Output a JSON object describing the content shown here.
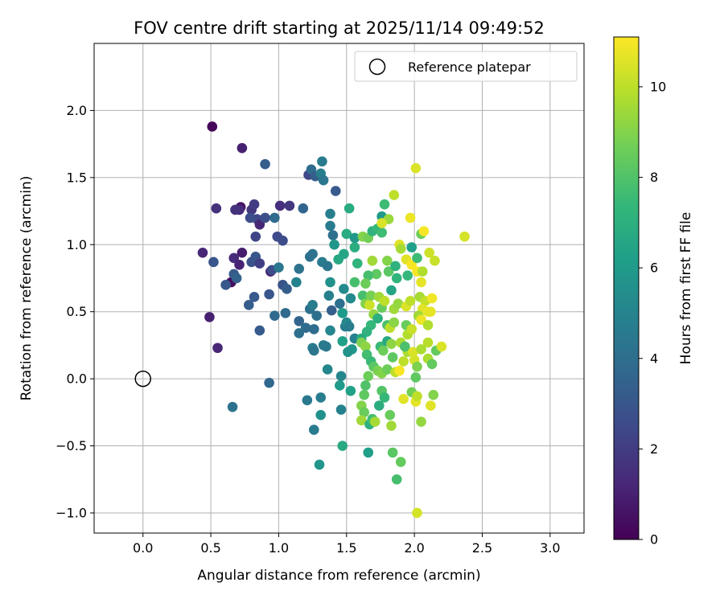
{
  "chart_data": {
    "type": "scatter",
    "title": "FOV centre drift starting at 2025/11/14 09:49:52",
    "xlabel": "Angular distance from reference (arcmin)",
    "ylabel": "Rotation from reference (arcmin)",
    "xlim": [
      -0.36,
      3.25
    ],
    "ylim": [
      -1.15,
      2.5
    ],
    "x_ticks": [
      0.0,
      0.5,
      1.0,
      1.5,
      2.0,
      2.5,
      3.0
    ],
    "x_tick_labels": [
      "0.0",
      "0.5",
      "1.0",
      "1.5",
      "2.0",
      "2.5",
      "3.0"
    ],
    "y_ticks": [
      -1.0,
      -0.5,
      0.0,
      0.5,
      1.0,
      1.5,
      2.0
    ],
    "y_tick_labels": [
      "−1.0",
      "−0.5",
      "0.0",
      "0.5",
      "1.0",
      "1.5",
      "2.0"
    ],
    "grid": true,
    "legend": {
      "position": "top-right",
      "entries": [
        "Reference platepar"
      ]
    },
    "reference_point": {
      "x": 0.0,
      "y": 0.0,
      "label": "Reference platepar"
    },
    "colorbar": {
      "label": "Hours from first FF file",
      "range": [
        0,
        11.1
      ],
      "ticks": [
        0,
        2,
        4,
        6,
        8,
        10
      ],
      "tick_labels": [
        "0",
        "2",
        "4",
        "6",
        "8",
        "10"
      ],
      "colormap": [
        "#440154",
        "#482878",
        "#3e4989",
        "#31688e",
        "#26828e",
        "#1f9e89",
        "#35b779",
        "#6ece58",
        "#b5de2b",
        "#fde725"
      ]
    },
    "points_columns": [
      "x",
      "y",
      "hours"
    ],
    "points": [
      [
        0.51,
        1.88,
        0.2
      ],
      [
        0.73,
        1.72,
        1.0
      ],
      [
        0.54,
        1.27,
        1.6
      ],
      [
        0.72,
        1.28,
        0.6
      ],
      [
        0.71,
        1.26,
        1.4
      ],
      [
        0.44,
        0.94,
        1.2
      ],
      [
        0.49,
        0.46,
        1.0
      ],
      [
        0.55,
        0.23,
        1.2
      ],
      [
        0.65,
        0.72,
        0.4
      ],
      [
        0.67,
        0.9,
        1.4
      ],
      [
        0.71,
        0.85,
        1.1
      ],
      [
        0.73,
        0.94,
        0.9
      ],
      [
        0.68,
        1.26,
        1.6
      ],
      [
        0.8,
        1.26,
        1.8
      ],
      [
        0.82,
        1.3,
        2.0
      ],
      [
        0.84,
        1.19,
        2.4
      ],
      [
        0.86,
        1.15,
        1.2
      ],
      [
        0.79,
        1.2,
        2.6
      ],
      [
        0.83,
        1.06,
        2.3
      ],
      [
        0.8,
        0.87,
        2.8
      ],
      [
        0.83,
        0.91,
        3.0
      ],
      [
        0.86,
        0.86,
        2.1
      ],
      [
        0.52,
        0.87,
        3.0
      ],
      [
        0.61,
        0.7,
        3.1
      ],
      [
        0.67,
        0.78,
        3.2
      ],
      [
        0.69,
        0.75,
        3.5
      ],
      [
        0.78,
        0.55,
        3.3
      ],
      [
        0.82,
        0.61,
        3.1
      ],
      [
        0.86,
        0.36,
        3.2
      ],
      [
        0.93,
        0.63,
        3.0
      ],
      [
        0.94,
        0.8,
        1.1
      ],
      [
        0.95,
        0.81,
        2.6
      ],
      [
        0.9,
        1.6,
        3.3
      ],
      [
        0.9,
        1.2,
        2.7
      ],
      [
        0.97,
        1.2,
        3.8
      ],
      [
        0.99,
        1.06,
        2.5
      ],
      [
        1.01,
        1.29,
        1.5
      ],
      [
        1.03,
        1.03,
        2.6
      ],
      [
        1.08,
        1.29,
        1.8
      ],
      [
        0.93,
        -0.03,
        3.7
      ],
      [
        0.66,
        -0.21,
        4.2
      ],
      [
        1.0,
        0.83,
        4.4
      ],
      [
        0.97,
        0.47,
        3.8
      ],
      [
        1.03,
        0.7,
        2.9
      ],
      [
        1.06,
        0.67,
        3.3
      ],
      [
        1.05,
        0.49,
        3.8
      ],
      [
        1.15,
        0.43,
        3.6
      ],
      [
        1.15,
        0.34,
        4.1
      ],
      [
        1.13,
        0.72,
        4.9
      ],
      [
        1.15,
        0.82,
        4.2
      ],
      [
        1.18,
        1.27,
        3.6
      ],
      [
        1.2,
        0.38,
        3.9
      ],
      [
        1.22,
        1.52,
        2.4
      ],
      [
        1.24,
        1.56,
        3.9
      ],
      [
        1.27,
        1.51,
        3.3
      ],
      [
        1.23,
        0.91,
        4.0
      ],
      [
        1.25,
        0.93,
        4.2
      ],
      [
        1.23,
        0.52,
        4.1
      ],
      [
        1.25,
        0.55,
        4.6
      ],
      [
        1.26,
        0.37,
        3.9
      ],
      [
        1.28,
        0.47,
        4.1
      ],
      [
        1.25,
        0.23,
        4.7
      ],
      [
        1.26,
        0.21,
        4.3
      ],
      [
        1.32,
        1.62,
        4.6
      ],
      [
        1.31,
        1.53,
        4.8
      ],
      [
        1.33,
        1.48,
        4.4
      ],
      [
        1.32,
        0.87,
        4.6
      ],
      [
        1.36,
        0.84,
        4.4
      ],
      [
        1.33,
        0.25,
        4.7
      ],
      [
        1.35,
        0.24,
        4.5
      ],
      [
        1.42,
        1.4,
        3.2
      ],
      [
        1.38,
        1.23,
        4.8
      ],
      [
        1.38,
        1.14,
        4.6
      ],
      [
        1.4,
        1.07,
        4.1
      ],
      [
        1.41,
        1.0,
        5.8
      ],
      [
        1.38,
        0.72,
        5.6
      ],
      [
        1.37,
        0.62,
        4.8
      ],
      [
        1.39,
        0.51,
        3.3
      ],
      [
        1.38,
        0.36,
        5.1
      ],
      [
        1.44,
        0.89,
        6.6
      ],
      [
        1.48,
        0.93,
        6.5
      ],
      [
        1.45,
        0.56,
        4.0
      ],
      [
        1.47,
        0.49,
        6.0
      ],
      [
        1.49,
        0.39,
        4.6
      ],
      [
        1.47,
        0.28,
        6.2
      ],
      [
        1.5,
        0.42,
        5.2
      ],
      [
        1.52,
        0.39,
        4.7
      ],
      [
        1.48,
        0.67,
        5.3
      ],
      [
        1.52,
        1.27,
        6.8
      ],
      [
        1.5,
        1.08,
        6.8
      ],
      [
        1.56,
        1.05,
        5.9
      ],
      [
        1.56,
        0.98,
        6.9
      ],
      [
        1.58,
        0.86,
        7.2
      ],
      [
        1.56,
        0.72,
        7.8
      ],
      [
        1.53,
        0.6,
        5.3
      ],
      [
        1.56,
        0.3,
        4.9
      ],
      [
        1.54,
        0.22,
        5.8
      ],
      [
        1.51,
        0.2,
        5.7
      ],
      [
        1.36,
        0.07,
        5.1
      ],
      [
        1.46,
        0.02,
        5.1
      ],
      [
        1.45,
        -0.05,
        6.0
      ],
      [
        1.53,
        -0.09,
        6.3
      ],
      [
        1.46,
        -0.23,
        4.9
      ],
      [
        1.31,
        -0.14,
        4.7
      ],
      [
        1.31,
        -0.27,
        5.6
      ],
      [
        1.26,
        -0.38,
        4.6
      ],
      [
        1.21,
        -0.16,
        4.5
      ],
      [
        1.3,
        -0.64,
        5.8
      ],
      [
        1.47,
        -0.5,
        6.7
      ],
      [
        1.66,
        -0.55,
        6.2
      ],
      [
        1.76,
        1.21,
        6.0
      ],
      [
        1.78,
        1.3,
        7.6
      ],
      [
        1.62,
        1.06,
        9.0
      ],
      [
        1.66,
        1.05,
        8.7
      ],
      [
        1.69,
        1.1,
        7.1
      ],
      [
        1.73,
        1.12,
        7.4
      ],
      [
        1.76,
        1.09,
        7.6
      ],
      [
        1.8,
        0.88,
        9.0
      ],
      [
        1.81,
        0.8,
        8.2
      ],
      [
        1.69,
        0.88,
        9.5
      ],
      [
        1.72,
        0.78,
        8.3
      ],
      [
        1.66,
        0.77,
        7.8
      ],
      [
        1.64,
        0.71,
        8.6
      ],
      [
        1.62,
        0.62,
        7.8
      ],
      [
        1.64,
        0.56,
        9.0
      ],
      [
        1.67,
        0.55,
        10.3
      ],
      [
        1.68,
        0.62,
        8.8
      ],
      [
        1.74,
        0.61,
        9.5
      ],
      [
        1.76,
        0.53,
        8.5
      ],
      [
        1.7,
        0.48,
        9.3
      ],
      [
        1.73,
        0.45,
        7.0
      ],
      [
        1.68,
        0.4,
        7.4
      ],
      [
        1.65,
        0.35,
        7.1
      ],
      [
        1.61,
        0.3,
        6.8
      ],
      [
        1.61,
        0.27,
        8.9
      ],
      [
        1.64,
        0.24,
        9.2
      ],
      [
        1.65,
        0.18,
        7.7
      ],
      [
        1.68,
        0.13,
        7.5
      ],
      [
        1.7,
        0.09,
        8.2
      ],
      [
        1.73,
        0.06,
        8.8
      ],
      [
        1.76,
        0.04,
        9.0
      ],
      [
        1.75,
        0.24,
        7.5
      ],
      [
        1.77,
        0.21,
        8.6
      ],
      [
        1.8,
        0.28,
        6.7
      ],
      [
        1.8,
        0.4,
        7.9
      ],
      [
        1.82,
        0.38,
        10.0
      ],
      [
        1.83,
        0.26,
        9.2
      ],
      [
        1.84,
        0.16,
        8.3
      ],
      [
        1.8,
        0.07,
        8.6
      ],
      [
        1.86,
        0.05,
        10.0
      ],
      [
        1.66,
        0.02,
        8.6
      ],
      [
        1.64,
        -0.05,
        8.0
      ],
      [
        1.63,
        -0.12,
        8.3
      ],
      [
        1.61,
        -0.2,
        9.0
      ],
      [
        1.63,
        -0.25,
        8.5
      ],
      [
        1.61,
        -0.31,
        9.5
      ],
      [
        1.67,
        -0.34,
        7.1
      ],
      [
        1.69,
        -0.3,
        7.7
      ],
      [
        1.71,
        -0.32,
        9.6
      ],
      [
        1.74,
        -0.2,
        6.9
      ],
      [
        1.76,
        -0.09,
        8.1
      ],
      [
        1.78,
        -0.14,
        7.4
      ],
      [
        1.82,
        -0.27,
        8.5
      ],
      [
        1.83,
        -0.35,
        9.5
      ],
      [
        1.84,
        -0.55,
        8.2
      ],
      [
        1.87,
        -0.75,
        7.8
      ],
      [
        1.9,
        -0.62,
        8.4
      ],
      [
        1.85,
        1.37,
        10.0
      ],
      [
        1.81,
        1.19,
        9.4
      ],
      [
        1.76,
        1.16,
        10.5
      ],
      [
        1.89,
        1.0,
        10.6
      ],
      [
        1.9,
        0.97,
        9.6
      ],
      [
        1.94,
        0.89,
        10.6
      ],
      [
        1.98,
        0.85,
        11.0
      ],
      [
        1.98,
        0.98,
        6.2
      ],
      [
        1.95,
        0.77,
        7.4
      ],
      [
        1.86,
        0.84,
        7.1
      ],
      [
        1.87,
        0.75,
        7.2
      ],
      [
        1.83,
        0.66,
        6.5
      ],
      [
        1.78,
        0.58,
        10.0
      ],
      [
        1.85,
        0.52,
        9.5
      ],
      [
        1.85,
        0.42,
        9.1
      ],
      [
        1.88,
        0.56,
        9.3
      ],
      [
        1.94,
        0.54,
        10.5
      ],
      [
        1.97,
        0.58,
        10.0
      ],
      [
        1.94,
        0.4,
        8.5
      ],
      [
        1.95,
        0.33,
        9.8
      ],
      [
        1.98,
        0.37,
        10.2
      ],
      [
        1.9,
        0.27,
        9.7
      ],
      [
        1.95,
        0.2,
        9.7
      ],
      [
        1.93,
        0.24,
        7.9
      ],
      [
        1.92,
        0.13,
        10.0
      ],
      [
        1.89,
        0.06,
        11.0
      ],
      [
        1.99,
        0.2,
        10.5
      ],
      [
        2.0,
        0.14,
        10.4
      ],
      [
        2.02,
        0.09,
        8.9
      ],
      [
        2.01,
        0.01,
        8.3
      ],
      [
        1.92,
        -0.15,
        10.6
      ],
      [
        1.98,
        -0.1,
        8.7
      ],
      [
        2.01,
        -0.17,
        10.7
      ],
      [
        2.02,
        -0.13,
        10.0
      ],
      [
        2.05,
        -0.32,
        9.3
      ],
      [
        2.02,
        -1.0,
        10.4
      ],
      [
        2.01,
        1.57,
        10.5
      ],
      [
        1.97,
        1.2,
        10.8
      ],
      [
        2.05,
        1.08,
        8.6
      ],
      [
        2.07,
        1.1,
        11.0
      ],
      [
        2.02,
        0.9,
        7.6
      ],
      [
        2.02,
        0.8,
        11.0
      ],
      [
        2.06,
        0.8,
        9.8
      ],
      [
        2.04,
        0.61,
        9.6
      ],
      [
        2.05,
        0.72,
        10.7
      ],
      [
        2.08,
        0.58,
        10.1
      ],
      [
        2.06,
        0.52,
        10.6
      ],
      [
        2.03,
        0.47,
        9.5
      ],
      [
        2.05,
        0.44,
        10.8
      ],
      [
        2.1,
        0.5,
        10.7
      ],
      [
        2.12,
        0.5,
        10.7
      ],
      [
        2.1,
        0.4,
        9.8
      ],
      [
        2.1,
        0.27,
        9.9
      ],
      [
        2.05,
        0.22,
        9.7
      ],
      [
        2.1,
        0.15,
        9.7
      ],
      [
        2.13,
        0.11,
        8.4
      ],
      [
        2.16,
        0.21,
        8.4
      ],
      [
        2.2,
        0.24,
        10.5
      ],
      [
        2.14,
        -0.12,
        9.0
      ],
      [
        2.12,
        -0.2,
        10.6
      ],
      [
        2.11,
        0.94,
        10.3
      ],
      [
        2.13,
        0.6,
        10.9
      ],
      [
        2.15,
        0.88,
        10.2
      ],
      [
        2.37,
        1.06,
        10.4
      ]
    ]
  }
}
